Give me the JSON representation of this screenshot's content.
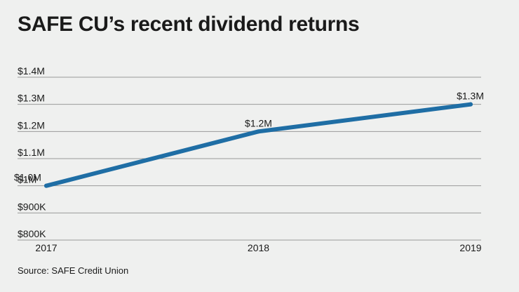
{
  "title": "SAFE CU’s recent dividend returns",
  "source": "Source: SAFE Credit Union",
  "colors": {
    "background": "#eff0ef",
    "line": "#1f6ea5",
    "grid": "#9a9a9a",
    "text": "#1a1a1a"
  },
  "chart_data": {
    "type": "line",
    "title": "SAFE CU’s recent dividend returns",
    "xlabel": "",
    "ylabel": "",
    "x": [
      "2017",
      "2018",
      "2019"
    ],
    "series": [
      {
        "values": [
          1000000,
          1200000,
          1300000
        ],
        "data_labels": [
          "$1.0M",
          "$1.2M",
          "$1.3M"
        ]
      }
    ],
    "ylim": [
      800000,
      1400000
    ],
    "yticks": [
      {
        "value": 1400000,
        "label": "$1.4M"
      },
      {
        "value": 1300000,
        "label": "$1.3M"
      },
      {
        "value": 1200000,
        "label": "$1.2M"
      },
      {
        "value": 1100000,
        "label": "$1.1M"
      },
      {
        "value": 1000000,
        "label": "$1M"
      },
      {
        "value": 900000,
        "label": "$900K"
      },
      {
        "value": 800000,
        "label": "$800K"
      }
    ],
    "grid": true,
    "legend": "none"
  }
}
